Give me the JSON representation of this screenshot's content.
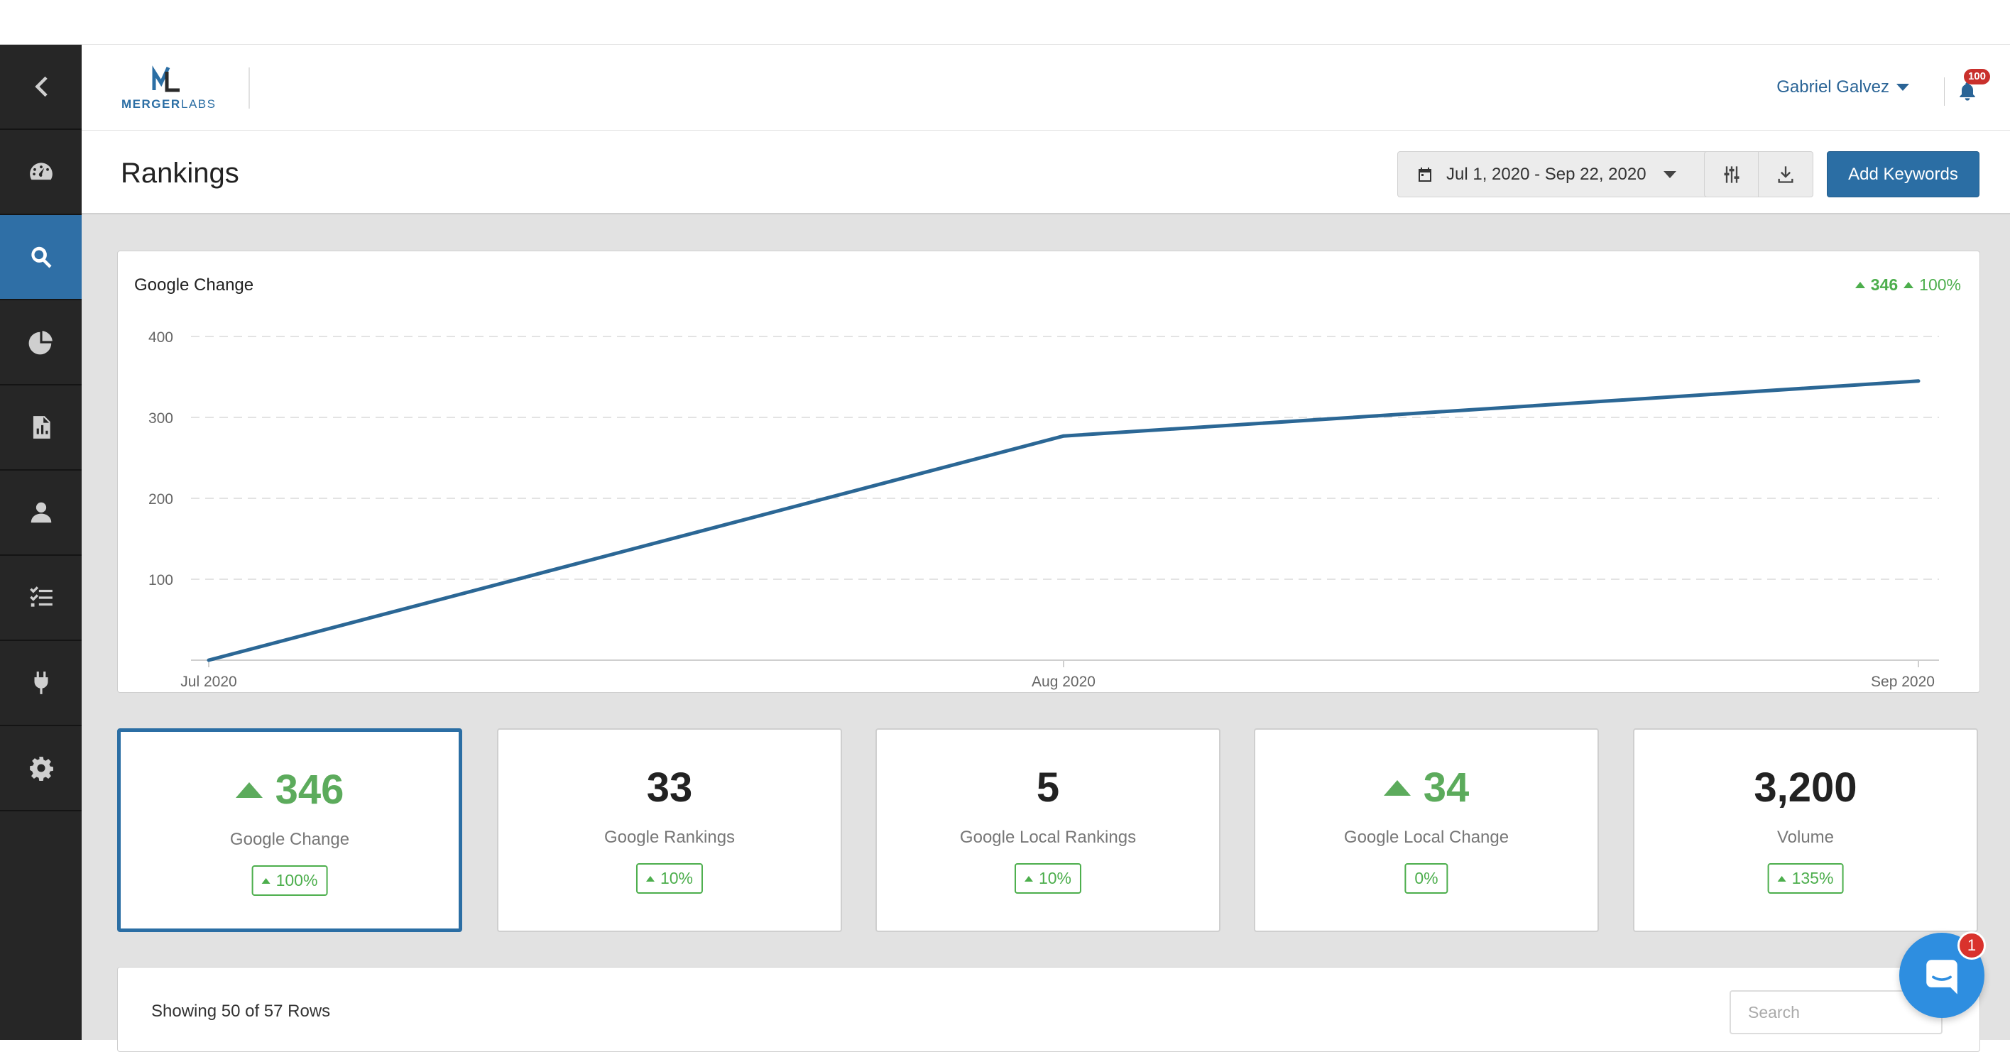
{
  "app": {
    "logo_text_main": "MERGER",
    "logo_text_sub": "LABS"
  },
  "sidebar": {
    "items": [
      {
        "icon": "chevron-left-icon",
        "active": false
      },
      {
        "icon": "dashboard-icon",
        "active": false
      },
      {
        "icon": "search-icon",
        "active": true
      },
      {
        "icon": "pie-chart-icon",
        "active": false
      },
      {
        "icon": "report-icon",
        "active": false
      },
      {
        "icon": "user-icon",
        "active": false
      },
      {
        "icon": "tasks-icon",
        "active": false
      },
      {
        "icon": "plug-icon",
        "active": false
      },
      {
        "icon": "gear-icon",
        "active": false
      }
    ]
  },
  "header": {
    "user_name": "Gabriel Galvez",
    "notifications_count": "100"
  },
  "toolbar": {
    "page_title": "Rankings",
    "date_range": "Jul 1, 2020 - Sep 22, 2020",
    "add_keywords_label": "Add Keywords"
  },
  "chart": {
    "title": "Google Change",
    "summary_value": "346",
    "summary_percent": "100%"
  },
  "chart_data": {
    "type": "line",
    "title": "Google Change",
    "x": [
      "Jul 2020",
      "Aug 2020",
      "Sep 2020"
    ],
    "x_tick_labels": [
      "Jul 2020",
      "Aug 2020",
      "Sep 2020"
    ],
    "y_ticks": [
      100,
      200,
      300,
      400
    ],
    "ylim": [
      0,
      400
    ],
    "grid": true,
    "series": [
      {
        "values": [
          0,
          277,
          345
        ],
        "color": "#2b6795"
      }
    ]
  },
  "stats": [
    {
      "value": "346",
      "label": "Google Change",
      "change": "100%",
      "trend": "up",
      "active": true
    },
    {
      "value": "33",
      "label": "Google Rankings",
      "change": "10%",
      "trend": "up",
      "active": false
    },
    {
      "value": "5",
      "label": "Google Local Rankings",
      "change": "10%",
      "trend": "up",
      "active": false
    },
    {
      "value": "34",
      "label": "Google Local Change",
      "change": "0%",
      "trend": "up",
      "active": false
    },
    {
      "value": "3,200",
      "label": "Volume",
      "change": "135%",
      "trend": "up",
      "active": false
    }
  ],
  "table": {
    "rows_info": "Showing 50 of 57 Rows",
    "search_placeholder": "Search"
  },
  "chat": {
    "badge": "1"
  },
  "colors": {
    "accent": "#2b6ea4",
    "positive": "#4cae4c",
    "sidebar_bg": "#262626"
  }
}
